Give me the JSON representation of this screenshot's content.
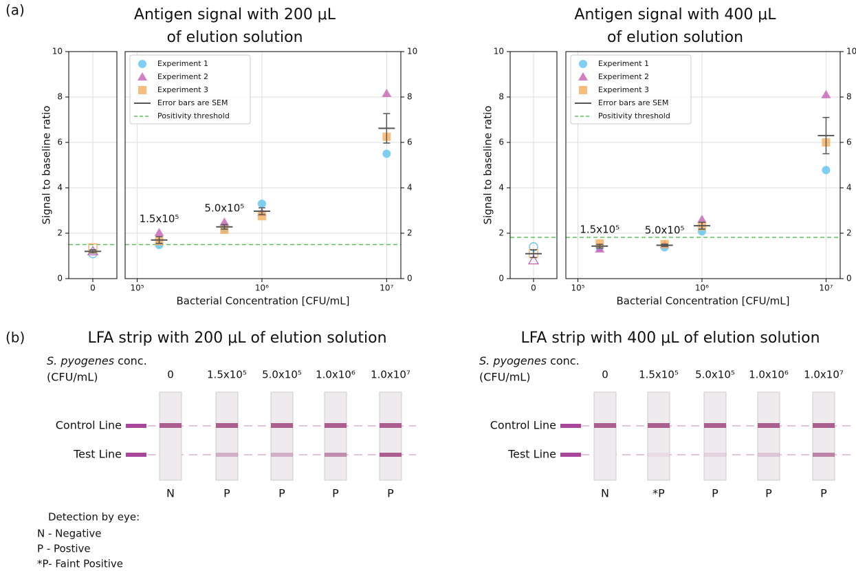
{
  "panel_a_label": "(a)",
  "chart_data": [
    {
      "type": "scatter",
      "title": [
        "Antigen signal with 200 μL",
        "of elution solution"
      ],
      "xlabel": "Bacterial Concentration [CFU/mL]",
      "ylabel": "Signal to baseline ratio",
      "x": [
        0,
        150000,
        500000,
        1000000,
        10000000
      ],
      "xscale": "log",
      "xlim": [
        80000,
        13000000
      ],
      "xticks": [
        {
          "value": 100000,
          "label": "10⁵"
        },
        {
          "value": 1000000,
          "label": "10⁶"
        },
        {
          "value": 10000000,
          "label": "10⁷"
        }
      ],
      "zero_panel": {
        "xlim": [
          -1,
          1
        ],
        "xticks": [
          0
        ]
      },
      "ylim": [
        0,
        10
      ],
      "yticks": [
        0,
        2,
        4,
        6,
        8,
        10
      ],
      "y2lim": [
        0,
        10
      ],
      "y2ticks": [
        0,
        2,
        4,
        6,
        8,
        10
      ],
      "series": [
        {
          "name": "Experiment 1",
          "color": "#5fc3ef",
          "marker": "circle",
          "values": [
            1.1,
            1.48,
            2.2,
            3.3,
            5.5
          ]
        },
        {
          "name": "Experiment 2",
          "color": "#c560b3",
          "marker": "triangle",
          "values": [
            1.2,
            2.02,
            2.48,
            2.9,
            8.15
          ]
        },
        {
          "name": "Experiment 3",
          "color": "#f6ae5c",
          "marker": "square",
          "values": [
            1.35,
            1.65,
            2.15,
            2.75,
            6.25
          ]
        }
      ],
      "mean": {
        "name": "Error bars are SEM",
        "color": "#555555",
        "values": [
          1.2,
          1.7,
          2.28,
          2.97,
          6.62
        ],
        "errors": [
          0.07,
          0.15,
          0.1,
          0.15,
          0.65
        ]
      },
      "threshold": {
        "name": "Positivity threshold",
        "color": "#5cbf5c",
        "value": 1.5
      },
      "annotations": [
        {
          "text": "1.5x10⁵",
          "x": 150000
        },
        {
          "text": "5.0x10⁵",
          "x": 500000
        }
      ],
      "grid": true,
      "legend": "upper left"
    },
    {
      "type": "scatter",
      "title": [
        "Antigen signal with 400 μL",
        "of elution solution"
      ],
      "xlabel": "Bacterial Concentration [CFU/mL]",
      "ylabel": "Signal to baseline ratio",
      "x": [
        0,
        150000,
        500000,
        1000000,
        10000000
      ],
      "xscale": "log",
      "xlim": [
        80000,
        13000000
      ],
      "xticks": [
        {
          "value": 100000,
          "label": "10⁵"
        },
        {
          "value": 1000000,
          "label": "10⁶"
        },
        {
          "value": 10000000,
          "label": "10⁷"
        }
      ],
      "zero_panel": {
        "xlim": [
          -1,
          1
        ],
        "xticks": [
          0
        ]
      },
      "ylim": [
        0,
        10
      ],
      "yticks": [
        0,
        2,
        4,
        6,
        8,
        10
      ],
      "y2lim": [
        0,
        10
      ],
      "y2ticks": [
        0,
        2,
        4,
        6,
        8,
        10
      ],
      "series": [
        {
          "name": "Experiment 1",
          "color": "#5fc3ef",
          "marker": "circle",
          "values": [
            1.4,
            1.38,
            1.38,
            2.08,
            4.78
          ]
        },
        {
          "name": "Experiment 2",
          "color": "#c560b3",
          "marker": "triangle",
          "values": [
            0.8,
            1.3,
            1.5,
            2.6,
            8.1
          ]
        },
        {
          "name": "Experiment 3",
          "color": "#f6ae5c",
          "marker": "square",
          "values": [
            1.1,
            1.55,
            1.52,
            2.3,
            6.0
          ]
        }
      ],
      "mean": {
        "name": "Error bars are SEM",
        "color": "#555555",
        "values": [
          1.1,
          1.43,
          1.47,
          2.33,
          6.3
        ],
        "errors": [
          0.17,
          0.08,
          0.05,
          0.15,
          0.8
        ]
      },
      "threshold": {
        "name": "Positivity threshold",
        "color": "#5cbf5c",
        "value": 1.82
      },
      "annotations": [
        {
          "text": "1.5x10⁵",
          "x": 150000
        },
        {
          "text": "5.0x10⁵",
          "x": 500000
        }
      ],
      "grid": true,
      "legend": "upper left"
    }
  ],
  "panel_b_label": "(b)",
  "strip_panels": [
    {
      "title": "LFA strip with 200 μL of elution solution",
      "header_species": "S. pyogenes",
      "header_rest": "conc.",
      "header_unit": "(CFU/mL)",
      "columns": [
        "0",
        "1.5x10⁵",
        "5.0x10⁵",
        "1.0x10⁶",
        "1.0x10⁷"
      ],
      "rows": [
        "Control Line",
        "Test Line"
      ],
      "results": [
        "N",
        "P",
        "P",
        "P",
        "P"
      ]
    },
    {
      "title": "LFA strip with 400 μL of elution solution",
      "header_species": "S. pyogenes",
      "header_rest": "conc.",
      "header_unit": "(CFU/mL)",
      "columns": [
        "0",
        "1.5x10⁵",
        "5.0x10⁵",
        "1.0x10⁶",
        "1.0x10⁷"
      ],
      "rows": [
        "Control Line",
        "Test Line"
      ],
      "results": [
        "N",
        "*P",
        "P",
        "P",
        "P"
      ]
    }
  ],
  "detection_legend": {
    "title": "Detection by eye:",
    "items": [
      "N - Negative",
      "P - Postive",
      "*P- Faint Positive"
    ]
  }
}
